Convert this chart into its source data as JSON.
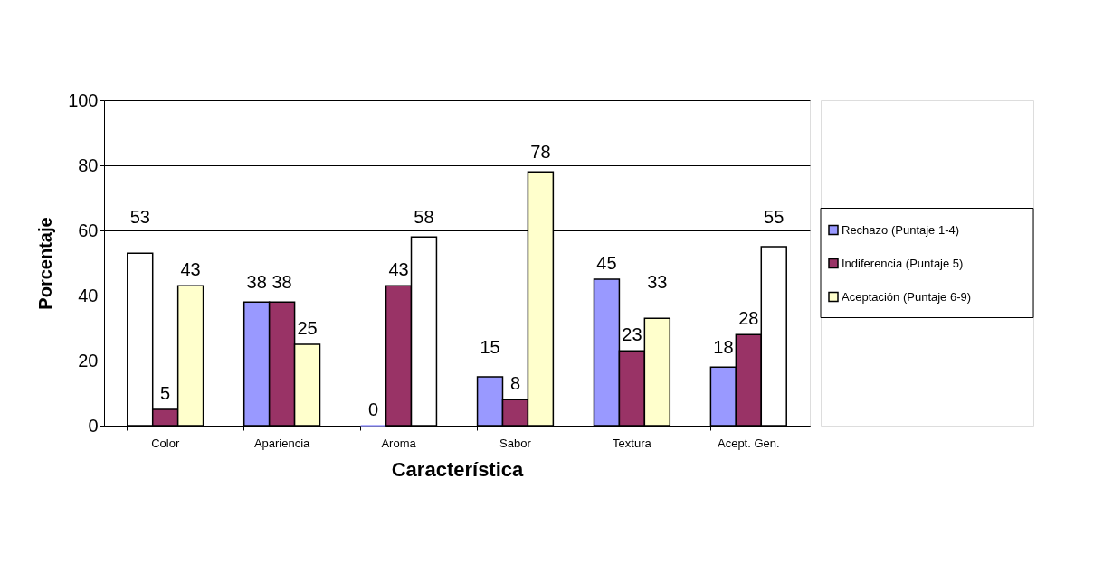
{
  "chart_data": {
    "type": "bar",
    "xlabel": "Característica",
    "ylabel": "Porcentaje",
    "categories": [
      "Color",
      "Apariencia",
      "Aroma",
      "Sabor",
      "Textura",
      "Acept. Gen."
    ],
    "series": [
      {
        "name": "Rechazo (Puntaje 1-4)",
        "color": "#9999ff",
        "colors": [
          "#ffffff",
          "#9999ff",
          "#9999ff",
          "#9999ff",
          "#9999ff",
          "#9999ff"
        ],
        "values": [
          53,
          38,
          0,
          15,
          45,
          18
        ]
      },
      {
        "name": "Indiferencia (Puntaje 5)",
        "color": "#993366",
        "colors": [
          "#993366",
          "#993366",
          "#993366",
          "#993366",
          "#993366",
          "#993366"
        ],
        "values": [
          5,
          38,
          43,
          8,
          23,
          28
        ]
      },
      {
        "name": "Aceptación (Puntaje 6-9)",
        "color": "#ffffcc",
        "colors": [
          "#ffffcc",
          "#ffffcc",
          "#ffffff",
          "#ffffcc",
          "#ffffcc",
          "#ffffff"
        ],
        "values": [
          43,
          25,
          58,
          78,
          33,
          55
        ]
      }
    ],
    "ylim": [
      0,
      100
    ],
    "yticks": [
      0,
      20,
      40,
      60,
      80,
      100
    ],
    "grid": "y",
    "legend": "right",
    "data_labels": true
  }
}
